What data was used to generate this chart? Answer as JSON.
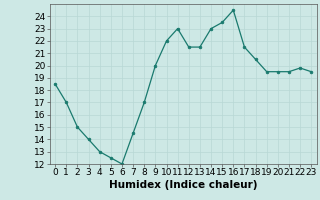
{
  "x": [
    0,
    1,
    2,
    3,
    4,
    5,
    6,
    7,
    8,
    9,
    10,
    11,
    12,
    13,
    14,
    15,
    16,
    17,
    18,
    19,
    20,
    21,
    22,
    23
  ],
  "y": [
    18.5,
    17.0,
    15.0,
    14.0,
    13.0,
    12.5,
    12.0,
    14.5,
    17.0,
    20.0,
    22.0,
    23.0,
    21.5,
    21.5,
    23.0,
    23.5,
    24.5,
    21.5,
    20.5,
    19.5,
    19.5,
    19.5,
    19.8,
    19.5
  ],
  "line_color": "#1a7a6e",
  "marker_color": "#1a7a6e",
  "bg_color": "#cde8e5",
  "grid_color": "#b8d8d5",
  "xlabel": "Humidex (Indice chaleur)",
  "xlabel_fontsize": 7.5,
  "ylim": [
    12,
    25
  ],
  "xlim": [
    -0.5,
    23.5
  ],
  "yticks": [
    12,
    13,
    14,
    15,
    16,
    17,
    18,
    19,
    20,
    21,
    22,
    23,
    24
  ],
  "xticks": [
    0,
    1,
    2,
    3,
    4,
    5,
    6,
    7,
    8,
    9,
    10,
    11,
    12,
    13,
    14,
    15,
    16,
    17,
    18,
    19,
    20,
    21,
    22,
    23
  ],
  "tick_fontsize": 6.5
}
